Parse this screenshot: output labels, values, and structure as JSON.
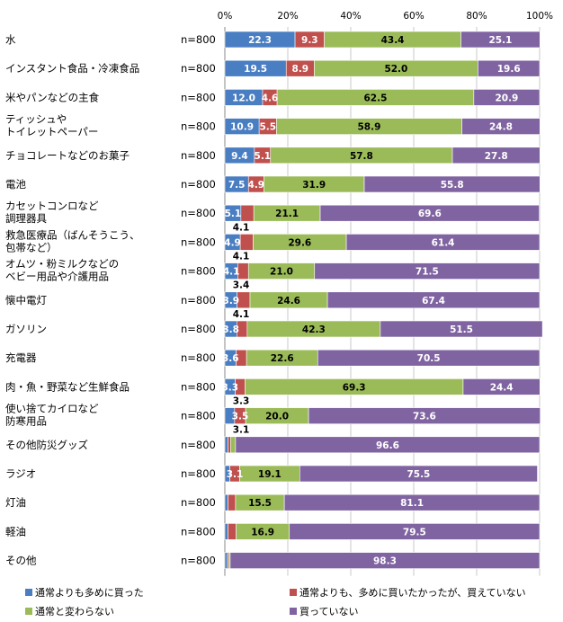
{
  "chart_data": {
    "type": "bar",
    "orientation": "horizontal",
    "stacked": true,
    "xlim": [
      0,
      100
    ],
    "x_ticks": [
      "0%",
      "20%",
      "40%",
      "60%",
      "80%",
      "100%"
    ],
    "grid": true,
    "legend_position": "bottom",
    "categories": [
      [
        "水"
      ],
      [
        "インスタント食品・冷凍食品"
      ],
      [
        "米やパンなどの主食"
      ],
      [
        "ティッシュや",
        "トイレットペーパー"
      ],
      [
        "チョコレートなどのお菓子"
      ],
      [
        "電池"
      ],
      [
        "カセットコンロなど",
        "調理器具"
      ],
      [
        "救急医療品（ばんそうこう、",
        "包帯など）"
      ],
      [
        "オムツ・粉ミルクなどの",
        "ベビー用品や介護用品"
      ],
      [
        "懐中電灯"
      ],
      [
        "ガソリン"
      ],
      [
        "充電器"
      ],
      [
        "肉・魚・野菜など生鮮食品"
      ],
      [
        "使い捨てカイロなど",
        "防寒用品"
      ],
      [
        "その他防災グッズ"
      ],
      [
        "ラジオ"
      ],
      [
        "灯油"
      ],
      [
        "軽油"
      ],
      [
        "その他"
      ]
    ],
    "n_labels": [
      "n=800",
      "n=800",
      "n=800",
      "n=800",
      "n=800",
      "n=800",
      "n=800",
      "n=800",
      "n=800",
      "n=800",
      "n=800",
      "n=800",
      "n=800",
      "n=800",
      "n=800",
      "n=800",
      "n=800",
      "n=800",
      "n=800"
    ],
    "series": [
      {
        "name": "通常よりも多めに買った",
        "color": "#4a7ec2",
        "values": [
          22.3,
          19.5,
          12.0,
          10.9,
          9.4,
          7.5,
          5.1,
          4.9,
          4.1,
          3.9,
          3.8,
          3.6,
          3.3,
          3.1,
          1.0,
          1.6,
          1.0,
          1.0,
          0.8
        ]
      },
      {
        "name": "通常よりも、多めに買いたかったが、買えていない",
        "color": "#c0504d",
        "values": [
          9.3,
          8.9,
          4.6,
          5.5,
          5.1,
          4.9,
          4.1,
          4.1,
          3.4,
          4.1,
          3.3,
          3.3,
          3.1,
          3.5,
          0.8,
          3.1,
          2.4,
          2.6,
          0.4
        ]
      },
      {
        "name": "通常と変わらない",
        "color": "#9bbb59",
        "values": [
          43.4,
          52.0,
          62.5,
          58.9,
          57.8,
          31.9,
          21.1,
          29.6,
          21.0,
          24.6,
          42.3,
          22.6,
          69.3,
          20.0,
          1.6,
          19.1,
          15.5,
          16.9,
          0.5
        ]
      },
      {
        "name": "買っていない",
        "color": "#8064a2",
        "values": [
          25.1,
          19.6,
          20.9,
          24.8,
          27.8,
          55.8,
          69.6,
          61.4,
          71.5,
          67.4,
          51.5,
          70.5,
          24.4,
          73.6,
          96.6,
          75.5,
          81.1,
          79.5,
          98.3
        ]
      }
    ],
    "data_labels": [
      [
        "22.3",
        "9.3",
        "43.4",
        "25.1"
      ],
      [
        "19.5",
        "8.9",
        "52.0",
        "19.6"
      ],
      [
        "12.0",
        "4.6",
        "62.5",
        "20.9"
      ],
      [
        "10.9",
        "5.5",
        "58.9",
        "24.8"
      ],
      [
        "9.4",
        "5.1",
        "57.8",
        "27.8"
      ],
      [
        "7.5",
        "4.9",
        "31.9",
        "55.8"
      ],
      [
        "5.1",
        "",
        "21.1",
        "69.6"
      ],
      [
        "4.9",
        "",
        "29.6",
        "61.4"
      ],
      [
        "4.1",
        "",
        "21.0",
        "71.5"
      ],
      [
        "3.9",
        "",
        "24.6",
        "67.4"
      ],
      [
        "3.8",
        "",
        "42.3",
        "51.5"
      ],
      [
        "3.6",
        "",
        "22.6",
        "70.5"
      ],
      [
        "3.3",
        "",
        "69.3",
        "24.4"
      ],
      [
        "",
        "3.5",
        "20.0",
        "73.6"
      ],
      [
        "",
        "",
        "",
        "96.6"
      ],
      [
        "",
        "3.1",
        "19.1",
        "75.5"
      ],
      [
        "",
        "",
        "15.5",
        "81.1"
      ],
      [
        "",
        "",
        "16.9",
        "79.5"
      ],
      [
        "",
        "",
        "",
        "98.3"
      ]
    ],
    "callouts": [
      {
        "row": 7,
        "text": "4.1"
      },
      {
        "row": 8,
        "text": "4.1"
      },
      {
        "row": 9,
        "text": "3.4"
      },
      {
        "row": 10,
        "text": "4.1"
      },
      {
        "row": 13,
        "text": "3.3"
      },
      {
        "row": 14,
        "text": "3.1"
      }
    ]
  }
}
